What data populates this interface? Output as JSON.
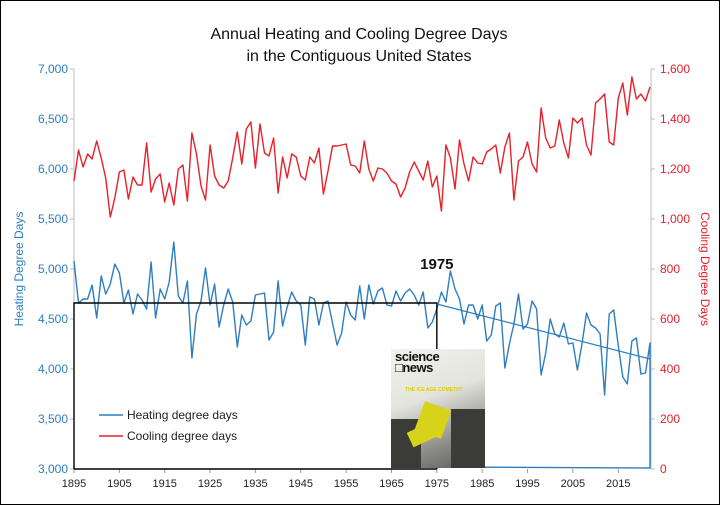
{
  "chart_data": {
    "type": "line",
    "title": [
      "Annual Heating and Cooling Degree Days",
      "in the Contiguous United States"
    ],
    "xlabel": "",
    "ylabel_left": "Heating Degree Days",
    "ylabel_right": "Cooling Degree Days",
    "xlim": [
      1895,
      2022
    ],
    "ylim_left": [
      3000,
      7000
    ],
    "ylim_right": [
      0,
      1600
    ],
    "x_ticks": [
      "1895",
      "1905",
      "1915",
      "1925",
      "1935",
      "1945",
      "1955",
      "1965",
      "1975",
      "1985",
      "1995",
      "2005",
      "2015"
    ],
    "y_ticks_left": [
      "3,000",
      "3,500",
      "4,000",
      "4,500",
      "5,000",
      "5,500",
      "6,000",
      "6,500",
      "7,000"
    ],
    "y_ticks_right": [
      "0",
      "200",
      "400",
      "600",
      "800",
      "1,000",
      "1,200",
      "1,400",
      "1,600"
    ],
    "grid": false,
    "legend_position": "bottom-left",
    "colors": {
      "heating": "#2e7ebf",
      "cooling": "#e8202a",
      "annotation": "#000000"
    },
    "series": [
      {
        "name": "Heating degree days",
        "axis": "left",
        "start_year": 1895,
        "values": [
          5080,
          4660,
          4700,
          4700,
          4840,
          4510,
          4930,
          4750,
          4850,
          5050,
          4960,
          4660,
          4790,
          4550,
          4750,
          4690,
          4600,
          5070,
          4510,
          4800,
          4700,
          4870,
          5270,
          4730,
          4660,
          4880,
          4110,
          4550,
          4680,
          5010,
          4640,
          4850,
          4420,
          4640,
          4800,
          4670,
          4220,
          4540,
          4440,
          4480,
          4740,
          4750,
          4760,
          4290,
          4370,
          4880,
          4430,
          4620,
          4770,
          4680,
          4640,
          4240,
          4720,
          4700,
          4440,
          4660,
          4680,
          4460,
          4240,
          4360,
          4670,
          4540,
          4490,
          4830,
          4500,
          4840,
          4650,
          4780,
          4810,
          4640,
          4630,
          4780,
          4680,
          4760,
          4800,
          4740,
          4640,
          4770,
          4410,
          4470,
          4600,
          4770,
          4670,
          4980,
          4800,
          4700,
          4450,
          4640,
          4640,
          4500,
          4640,
          4280,
          4340,
          4630,
          4660,
          4010,
          4250,
          4450,
          4750,
          4400,
          4450,
          4680,
          4600,
          3940,
          4160,
          4500,
          4350,
          4320,
          4460,
          4250,
          4260,
          3990,
          4250,
          4560,
          4440,
          4410,
          4350,
          3740,
          4550,
          4590,
          4230,
          3920,
          3850,
          4280,
          4310,
          3950,
          3960,
          4260
        ]
      },
      {
        "name": "Cooling degree days",
        "axis": "right",
        "start_year": 1895,
        "values": [
          1152,
          1276,
          1208,
          1260,
          1240,
          1312,
          1244,
          1164,
          1008,
          1084,
          1188,
          1196,
          1080,
          1168,
          1136,
          1136,
          1304,
          1108,
          1160,
          1180,
          1068,
          1144,
          1056,
          1200,
          1216,
          1072,
          1344,
          1260,
          1132,
          1076,
          1296,
          1172,
          1136,
          1124,
          1152,
          1244,
          1348,
          1220,
          1360,
          1388,
          1204,
          1380,
          1264,
          1252,
          1324,
          1104,
          1248,
          1164,
          1260,
          1248,
          1172,
          1156,
          1248,
          1224,
          1284,
          1100,
          1192,
          1292,
          1292,
          1296,
          1300,
          1216,
          1212,
          1184,
          1312,
          1200,
          1152,
          1204,
          1200,
          1184,
          1152,
          1140,
          1088,
          1124,
          1188,
          1228,
          1192,
          1156,
          1232,
          1128,
          1172,
          1032,
          1296,
          1244,
          1120,
          1316,
          1220,
          1152,
          1248,
          1224,
          1220,
          1268,
          1280,
          1296,
          1184,
          1288,
          1344,
          1076,
          1232,
          1248,
          1308,
          1220,
          1188,
          1444,
          1324,
          1284,
          1292,
          1396,
          1304,
          1244,
          1404,
          1384,
          1404,
          1296,
          1256,
          1464,
          1480,
          1500,
          1308,
          1296,
          1484,
          1544,
          1416,
          1568,
          1480,
          1500,
          1472,
          1528
        ]
      }
    ],
    "annotations": {
      "label": "1975",
      "pre_1975_level": 4660,
      "trend_line": {
        "from": [
          1975,
          4650
        ],
        "to": [
          2022,
          4100
        ]
      }
    }
  },
  "inset": {
    "masthead_line1": "science",
    "masthead_line2": "news",
    "headline": "THE ICE AGE COMETH?"
  }
}
